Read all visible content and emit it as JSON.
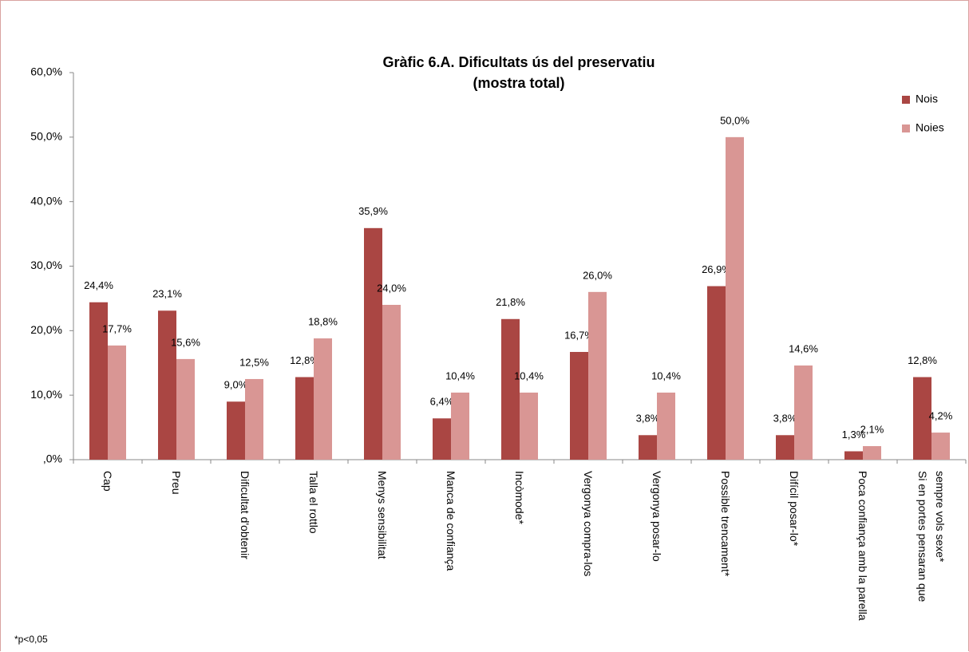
{
  "chart_data": {
    "type": "bar",
    "title": "Gràfic 6.A. Dificultats ús del preservatiu",
    "subtitle": "(mostra total)",
    "categories": [
      "Cap",
      "Preu",
      "Dificultat d'obtenir",
      "Talla el rottlo",
      "Menys sensibilitat",
      "Manca de confiança",
      "Incòmode*",
      "Vergonya compra-los",
      "Vergonya posar-lo",
      "Possible trencament*",
      "Difícil posar-lo*",
      "Poca confiança amb la parella",
      "Si en portes pensaran que sempre vols sexe*"
    ],
    "series": [
      {
        "name": "Nois",
        "color": "#aa4643",
        "values": [
          24.4,
          23.1,
          9.0,
          12.8,
          35.9,
          6.4,
          21.8,
          16.7,
          3.8,
          26.9,
          3.8,
          1.3,
          12.8
        ],
        "value_labels": [
          "24,4%",
          "23,1%",
          "9,0%",
          "12,8%",
          "35,9%",
          "6,4%",
          "21,8%",
          "16,7%",
          "3,8%",
          "26,9%",
          "3,8%",
          "1,3%",
          "12,8%"
        ]
      },
      {
        "name": "Noies",
        "color": "#d99694",
        "values": [
          17.7,
          15.6,
          12.5,
          18.8,
          24.0,
          10.4,
          10.4,
          26.0,
          10.4,
          50.0,
          14.6,
          2.1,
          4.2
        ],
        "value_labels": [
          "17,7%",
          "15,6%",
          "12,5%",
          "18,8%",
          "24,0%",
          "10,4%",
          "10,4%",
          "26,0%",
          "10,4%",
          "50,0%",
          "14,6%",
          "2,1%",
          "4,2%"
        ]
      }
    ],
    "ylim": [
      0,
      60
    ],
    "yticks": [
      {
        "value": 0,
        "label": ",0%"
      },
      {
        "value": 10,
        "label": "10,0%"
      },
      {
        "value": 20,
        "label": "20,0%"
      },
      {
        "value": 30,
        "label": "30,0%"
      },
      {
        "value": 40,
        "label": "40,0%"
      },
      {
        "value": 50,
        "label": "50,0%"
      },
      {
        "value": 60,
        "label": "60,0%"
      }
    ],
    "grid": false,
    "legend": "right",
    "footnote": "*p<0,05"
  }
}
